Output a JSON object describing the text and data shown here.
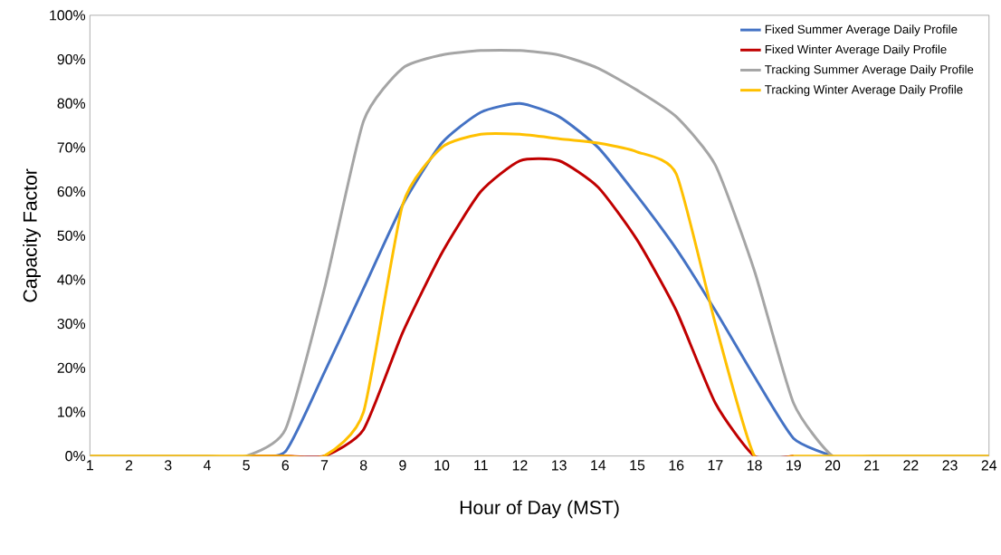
{
  "chart_data": {
    "type": "line",
    "xlabel": "Hour of Day (MST)",
    "ylabel": "Capacity Factor",
    "x": [
      1,
      2,
      3,
      4,
      5,
      6,
      7,
      8,
      9,
      10,
      11,
      12,
      13,
      14,
      15,
      16,
      17,
      18,
      19,
      20,
      21,
      22,
      23,
      24
    ],
    "xlim": [
      1,
      24
    ],
    "xticks": [
      1,
      2,
      3,
      4,
      5,
      6,
      7,
      8,
      9,
      10,
      11,
      12,
      13,
      14,
      15,
      16,
      17,
      18,
      19,
      20,
      21,
      22,
      23,
      24
    ],
    "ylim": [
      0,
      100
    ],
    "yticks": [
      {
        "value": 0,
        "label": "0%"
      },
      {
        "value": 10,
        "label": "10%"
      },
      {
        "value": 20,
        "label": "20%"
      },
      {
        "value": 30,
        "label": "30%"
      },
      {
        "value": 40,
        "label": "40%"
      },
      {
        "value": 50,
        "label": "50%"
      },
      {
        "value": 60,
        "label": "60%"
      },
      {
        "value": 70,
        "label": "70%"
      },
      {
        "value": 80,
        "label": "80%"
      },
      {
        "value": 90,
        "label": "90%"
      },
      {
        "value": 100,
        "label": "100%"
      }
    ],
    "legend": "top right",
    "series": [
      {
        "name": "Fixed Summer Average Daily Profile",
        "color": "#4472c4",
        "values": [
          null,
          null,
          null,
          null,
          0,
          1,
          19,
          38,
          57,
          71,
          78,
          80,
          77,
          70,
          59,
          47,
          33,
          18,
          4,
          0,
          null,
          null,
          null,
          null
        ]
      },
      {
        "name": "Fixed Winter Average Daily Profile",
        "color": "#c00000",
        "values": [
          null,
          null,
          null,
          null,
          0,
          0,
          0,
          6,
          28,
          46,
          60,
          67,
          67,
          61,
          49,
          33,
          12,
          0,
          0,
          null,
          null,
          null,
          null,
          null
        ]
      },
      {
        "name": "Tracking Summer Average Daily Profile",
        "color": "#a5a5a5",
        "values": [
          0,
          0,
          0,
          0,
          0,
          6,
          38,
          76,
          88,
          91,
          92,
          92,
          91,
          88,
          83,
          77,
          66,
          42,
          12,
          0,
          0,
          0,
          0,
          0
        ]
      },
      {
        "name": "Tracking Winter Average Daily Profile",
        "color": "#ffc000",
        "values": [
          0,
          0,
          0,
          0,
          0,
          0,
          0,
          10,
          57,
          70,
          73,
          73,
          72,
          71,
          69,
          64,
          30,
          0,
          0,
          0,
          0,
          0,
          0,
          0
        ]
      }
    ]
  }
}
